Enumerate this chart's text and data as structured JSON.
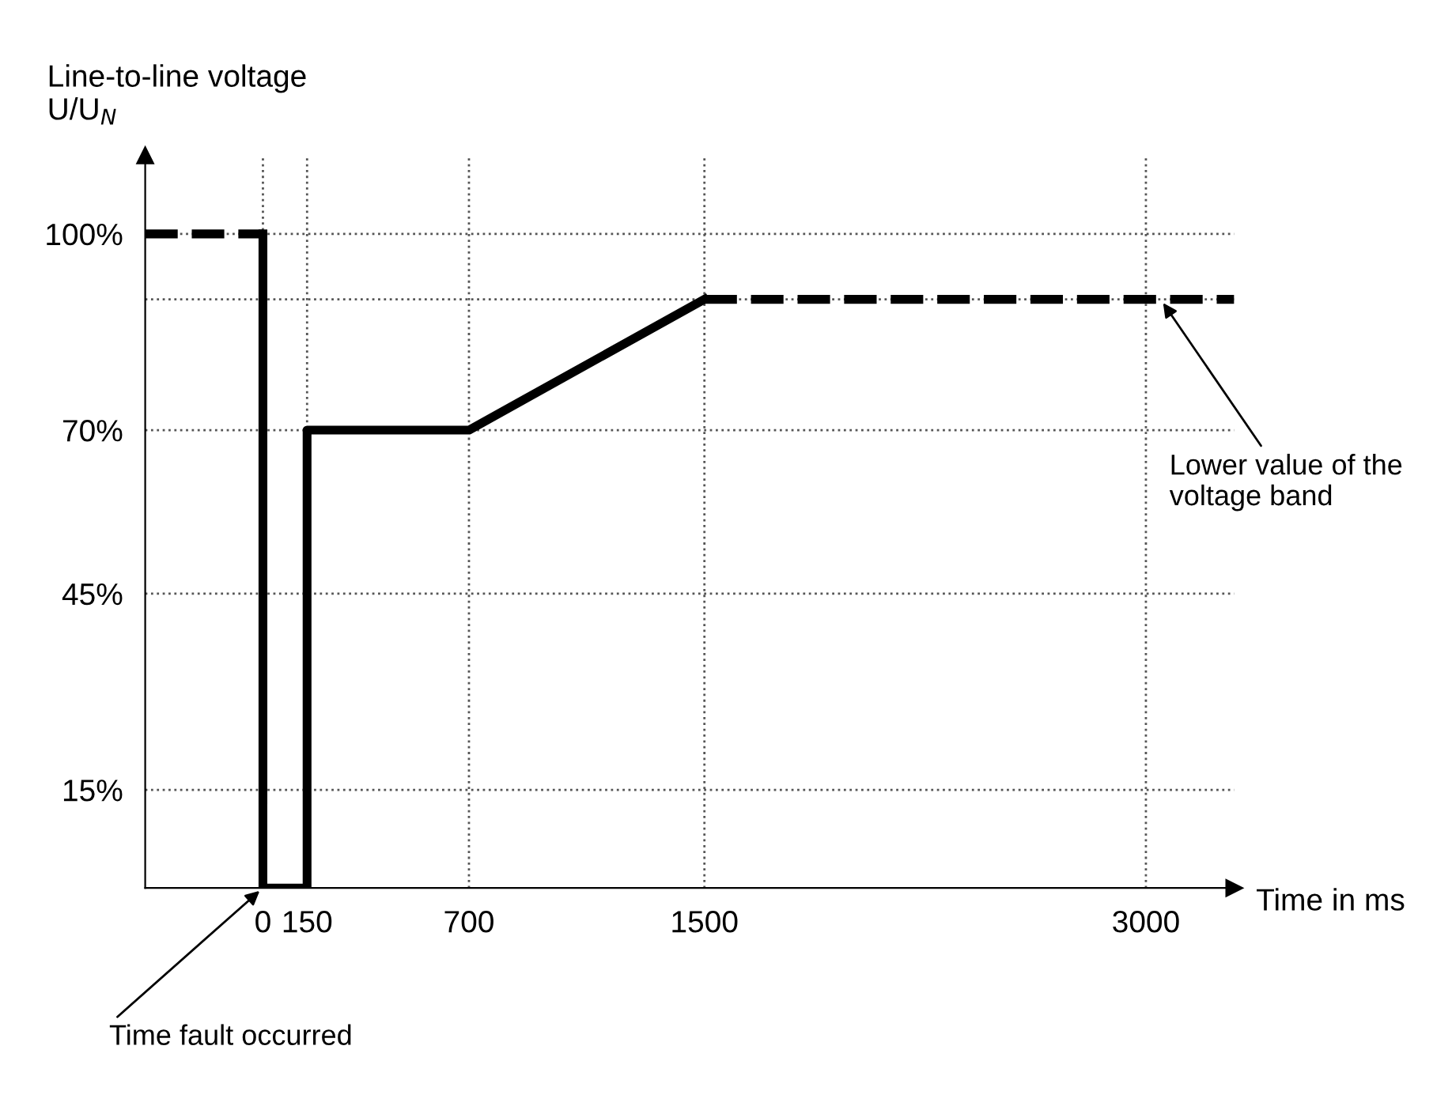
{
  "chart_data": {
    "type": "line",
    "xlabel": "Time in ms",
    "ylabel": "Line-to-line voltage\nU/U$_{N}$",
    "series": [
      {
        "color": "#000000",
        "line_style": "dashed",
        "x": [
          -400,
          0
        ],
        "values": [
          100,
          100
        ]
      },
      {
        "color": "#000000",
        "line_style": "solid",
        "x": [
          0,
          0,
          150,
          150,
          700,
          1500
        ],
        "values": [
          100,
          0,
          0,
          70,
          70,
          90
        ]
      },
      {
        "color": "#000000",
        "line_style": "dashed",
        "x": [
          1500,
          3300
        ],
        "values": [
          90,
          90
        ]
      }
    ],
    "xlim": [
      -400,
      3300
    ],
    "ylim": [
      0,
      112
    ],
    "xticks": [
      0,
      150,
      700,
      1500,
      3000
    ],
    "yticks": [
      {
        "value": 15,
        "label": "15%"
      },
      {
        "value": 45,
        "label": "45%"
      },
      {
        "value": 70,
        "label": "70%"
      },
      {
        "value": 90,
        "label": null
      },
      {
        "value": 100,
        "label": "100%"
      }
    ],
    "grid": true,
    "marker": "none",
    "legend": false,
    "annotations": [
      {
        "text": "Lower value of the voltage band",
        "x": 3050,
        "y": 90
      },
      {
        "text": "Time fault occurred",
        "x": 0,
        "y": 0
      }
    ]
  }
}
